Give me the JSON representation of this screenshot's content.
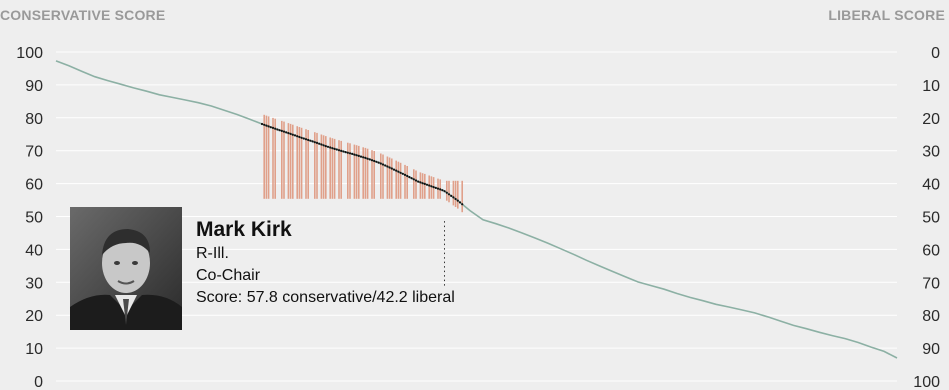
{
  "chart_data": {
    "type": "scatter",
    "left_axis_title": "CONSERVATIVE SCORE",
    "right_axis_title": "LIBERAL SCORE",
    "left_ticks": [
      100,
      90,
      80,
      70,
      60,
      50,
      40,
      30,
      20,
      10,
      0
    ],
    "right_ticks": [
      0,
      10,
      20,
      30,
      40,
      50,
      60,
      70,
      80,
      90,
      100
    ],
    "ylim": [
      0,
      100
    ],
    "grid": true,
    "series": [
      {
        "values": [
          97.3,
          95.8,
          94.1,
          92.5,
          91.3,
          90.2,
          89.1,
          88.1,
          87.0,
          86.2,
          85.4,
          84.6,
          83.6,
          82.3,
          81.0,
          79.5,
          78.0,
          76.6,
          75.3,
          73.9,
          72.6,
          71.2,
          70.0,
          68.9,
          67.7,
          66.3,
          64.5,
          62.6,
          60.6,
          59.2,
          57.8,
          55.0,
          51.8,
          49.0,
          47.8,
          46.5,
          45.0,
          43.5,
          41.9,
          40.2,
          38.5,
          36.7,
          35.0,
          33.3,
          31.7,
          30.1,
          29.0,
          27.9,
          26.6,
          25.4,
          24.4,
          23.3,
          22.5,
          21.6,
          20.7,
          19.5,
          18.2,
          16.9,
          15.9,
          14.8,
          13.8,
          12.9,
          11.7,
          10.3,
          9.0,
          7.0
        ]
      }
    ],
    "highlight": {
      "name": "Mark Kirk",
      "party_state": "R-Ill.",
      "role": "Co-Chair",
      "score_text": "Score: 57.8 conservative/42.2 liberal",
      "score": 57.8
    }
  },
  "colors": {
    "line": "#8cb0a4",
    "member": "#e0a08a",
    "grid": "#ffffff",
    "dots": "#111111"
  },
  "photo_icon": "portrait-photo"
}
